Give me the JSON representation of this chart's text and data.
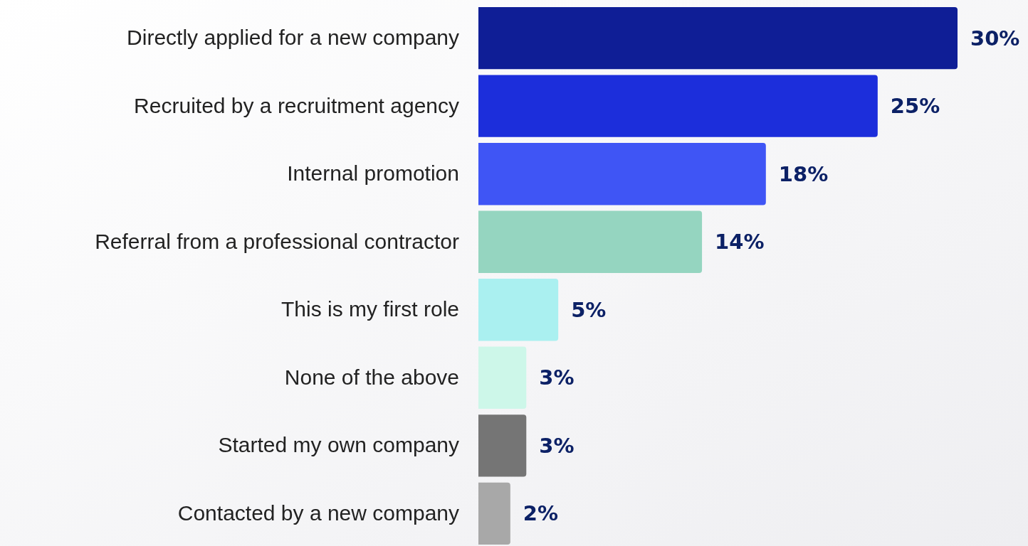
{
  "chart_data": {
    "type": "bar",
    "orientation": "horizontal",
    "categories": [
      "Directly applied for a new company",
      "Recruited by a recruitment agency",
      "Internal promotion",
      "Referral from a professional contractor",
      "This is my first role",
      "None of the above",
      "Started my own company",
      "Contacted by a new company"
    ],
    "values": [
      30,
      25,
      18,
      14,
      5,
      3,
      3,
      2
    ],
    "colors": [
      "#0f1e96",
      "#1c2edb",
      "#3f55f5",
      "#95d5c0",
      "#aaf0f0",
      "#cdf7e9",
      "#757575",
      "#a8a8a8"
    ],
    "value_labels": [
      "30%",
      "25%",
      "18%",
      "14%",
      "5%",
      "3%",
      "3%",
      "2%"
    ],
    "tick_labels": "y"
  }
}
